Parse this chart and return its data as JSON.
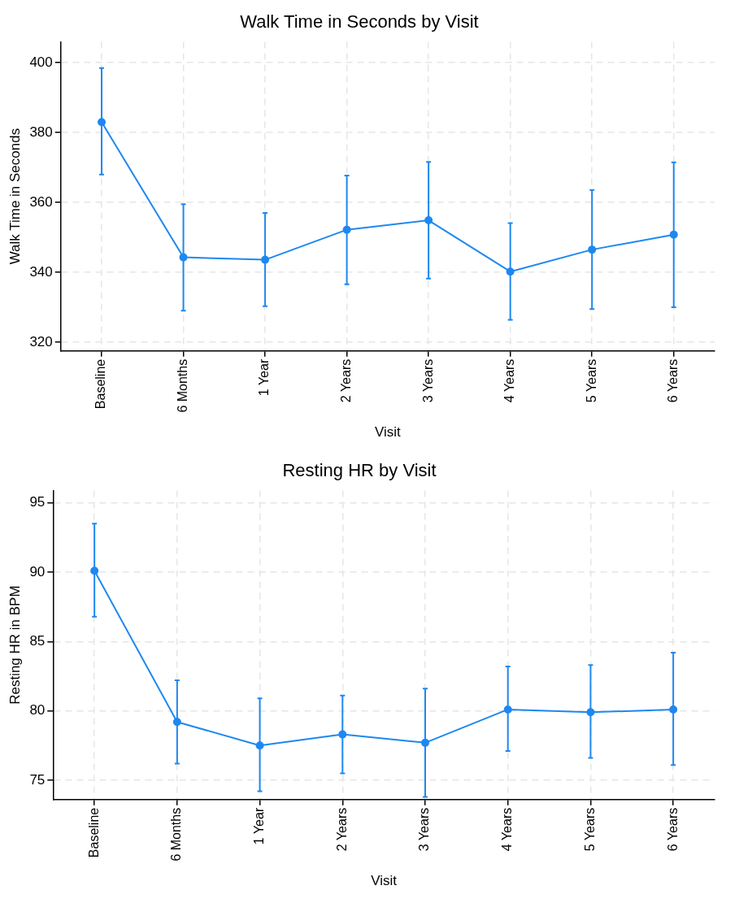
{
  "chart_data": [
    {
      "type": "line",
      "title": "Walk Time in Seconds by Visit",
      "xlabel": "Visit",
      "ylabel": "Walk Time in Seconds",
      "categories": [
        "Baseline",
        "6 Months",
        "1 Year",
        "2 Years",
        "3 Years",
        "4 Years",
        "5 Years",
        "6 Years"
      ],
      "series": [
        {
          "color": "#1e88f0",
          "values": [
            383,
            344.3,
            343.6,
            352.2,
            354.9,
            340.2,
            346.5,
            350.8
          ],
          "errors": [
            [
              368,
              398.5
            ],
            [
              329,
              359.5
            ],
            [
              330.3,
              357
            ],
            [
              336.6,
              367.7
            ],
            [
              338.2,
              371.6
            ],
            [
              326.4,
              354.1
            ],
            [
              329.5,
              363.6
            ],
            [
              330,
              371.5
            ]
          ]
        }
      ],
      "ylim": [
        317.5,
        406
      ],
      "yticks": [
        320,
        340,
        360,
        380,
        400
      ],
      "grid": true,
      "marker": "circle",
      "line_style": "solid",
      "legend": false
    },
    {
      "type": "line",
      "title": "Resting HR by Visit",
      "xlabel": "Visit",
      "ylabel": "Resting HR in BPM",
      "categories": [
        "Baseline",
        "6 Months",
        "1 Year",
        "2 Years",
        "3 Years",
        "4 Years",
        "5 Years",
        "6 Years"
      ],
      "series": [
        {
          "color": "#1e88f0",
          "values": [
            90.1,
            79.2,
            77.5,
            78.3,
            77.7,
            80.1,
            79.9,
            80.1
          ],
          "errors": [
            [
              86.8,
              93.5
            ],
            [
              76.2,
              82.2
            ],
            [
              74.2,
              80.9
            ],
            [
              75.5,
              81.1
            ],
            [
              73.8,
              81.6
            ],
            [
              77.1,
              83.2
            ],
            [
              76.6,
              83.3
            ],
            [
              76.1,
              84.2
            ]
          ]
        }
      ],
      "ylim": [
        73.6,
        95.9
      ],
      "yticks": [
        75,
        80,
        85,
        90,
        95
      ],
      "grid": true,
      "marker": "circle",
      "line_style": "solid",
      "legend": false
    }
  ]
}
